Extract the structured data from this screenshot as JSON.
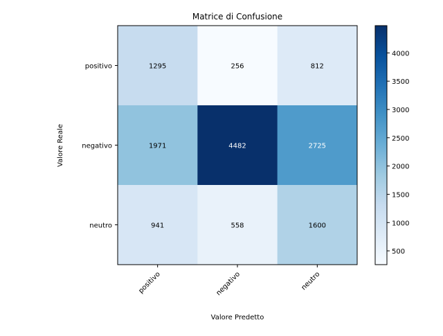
{
  "chart_data": {
    "type": "heatmap",
    "title": "Matrice di Confusione",
    "xlabel": "Valore Predetto",
    "ylabel": "Valore Reale",
    "row_labels": [
      "positivo",
      "negativo",
      "neutro"
    ],
    "col_labels": [
      "positivo",
      "negativo",
      "neutro"
    ],
    "values": [
      [
        1295,
        256,
        812
      ],
      [
        1971,
        4482,
        2725
      ],
      [
        941,
        558,
        1600
      ]
    ],
    "colormap": "Blues",
    "colorbar_range": [
      256,
      4482
    ],
    "colorbar_ticks": [
      500,
      1000,
      1500,
      2000,
      2500,
      3000,
      3500,
      4000
    ]
  }
}
